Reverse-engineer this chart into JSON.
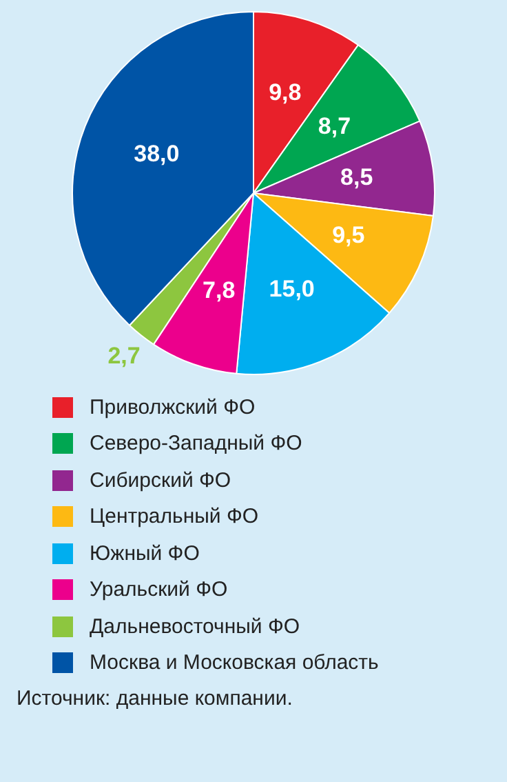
{
  "chart_data": {
    "type": "pie",
    "categories": [
      "Приволжский ФО",
      "Северо-Западный ФО",
      "Сибирский ФО",
      "Центральный ФО",
      "Южный ФО",
      "Уральский ФО",
      "Дальневосточный ФО",
      "Москва и Московская область"
    ],
    "values": [
      9.8,
      8.7,
      8.5,
      9.5,
      15.0,
      7.8,
      2.7,
      38.0
    ],
    "value_labels": [
      "9,8",
      "8,7",
      "8,5",
      "9,5",
      "15,0",
      "7,8",
      "2,7",
      "38,0"
    ],
    "colors": [
      "#e8202a",
      "#00a651",
      "#92278f",
      "#fdb913",
      "#00aeef",
      "#ec008c",
      "#8dc63f",
      "#0054a6"
    ],
    "legend": "bottom",
    "annotations": [
      "Источник: данные компании."
    ]
  }
}
